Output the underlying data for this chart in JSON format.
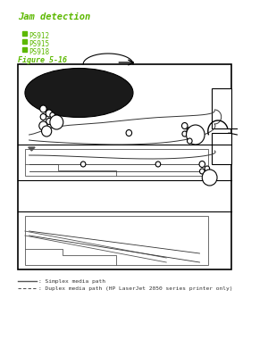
{
  "bg_color": "#ffffff",
  "diagram_bg": "#ffffff",
  "title": "Jam detection",
  "title_color": "#5cb800",
  "title_fontsize": 7.5,
  "bullet_labels": [
    "PS912",
    "PS915",
    "PS918"
  ],
  "bullet_color": "#5cb800",
  "bullet_fontsize": 5.5,
  "figure_label": "Figure 5-16",
  "figure_label_color": "#5cb800",
  "figure_label_fontsize": 6,
  "legend_line1": ": Simplex media path",
  "legend_line2": ": Duplex media path (HP LaserJet 2050 series printer only)",
  "legend_fontsize": 4.5,
  "line_color": "#000000",
  "path_color": "#333333",
  "sensor_color": "#ffffff",
  "sensor_edge": "#000000"
}
